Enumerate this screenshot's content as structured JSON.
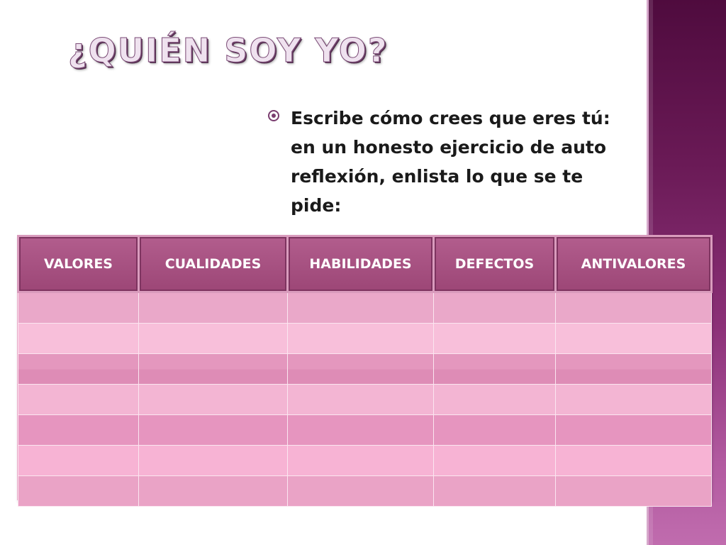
{
  "slide": {
    "title": "¿QUIÉN SOY YO?",
    "bullet": "Escribe cómo crees que eres tú: en un honesto ejercicio de auto reflexión, enlista lo que se te pide:"
  },
  "table": {
    "headers": [
      "VALORES",
      "CUALIDADES",
      "HABILIDADES",
      "DEFECTOS",
      "ANTIVALORES"
    ],
    "empty_rows": 7
  },
  "colors": {
    "side_band": "#6a1a56",
    "header_fill": "#a65082",
    "row_pink": "#eaa8c9"
  },
  "icons": {
    "bullet": "radio-bullet-icon"
  }
}
